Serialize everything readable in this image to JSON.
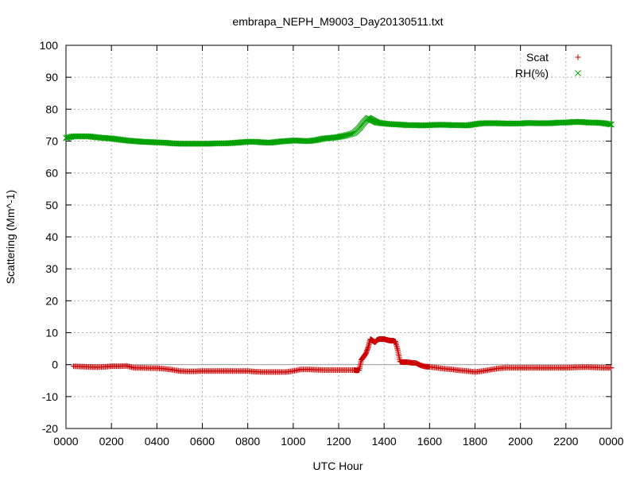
{
  "chart_data": {
    "type": "scatter",
    "title": "embrapa_NEPH_M9003_Day20130511.txt",
    "xlabel": "UTC Hour",
    "ylabel": "Scattering (Mm^-1)",
    "xlim": [
      0,
      24
    ],
    "ylim": [
      -20,
      100
    ],
    "x_tick_values": [
      0,
      2,
      4,
      6,
      8,
      10,
      12,
      14,
      16,
      18,
      20,
      22,
      24
    ],
    "x_tick_labels": [
      "0000",
      "0200",
      "0400",
      "0600",
      "0800",
      "1000",
      "1200",
      "1400",
      "1600",
      "1800",
      "2000",
      "2200",
      "0000"
    ],
    "y_ticks": [
      -20,
      -10,
      0,
      10,
      20,
      30,
      40,
      50,
      60,
      70,
      80,
      90,
      100
    ],
    "grid": true,
    "legend_position": "top-right",
    "zero_line": true,
    "series": [
      {
        "name": "Scat",
        "marker": "+",
        "color": "#cc0000",
        "x": [
          0.33,
          0.67,
          1,
          1.33,
          1.67,
          2,
          2.33,
          2.67,
          3,
          3.33,
          3.67,
          4,
          4.33,
          4.67,
          5,
          5.33,
          5.67,
          6,
          6.33,
          6.67,
          7,
          7.33,
          7.67,
          8,
          8.33,
          8.67,
          9,
          9.33,
          9.67,
          10,
          10.33,
          10.67,
          11,
          11.33,
          11.67,
          12,
          12.33,
          12.67,
          12.8,
          12.9,
          13,
          13.1,
          13.2,
          13.3,
          13.4,
          13.5,
          13.6,
          13.7,
          13.8,
          13.9,
          14,
          14.1,
          14.2,
          14.3,
          14.4,
          14.5,
          14.6,
          14.7,
          14.8,
          14.9,
          15,
          15.2,
          15.4,
          15.6,
          15.8,
          16,
          16.33,
          16.67,
          17,
          17.33,
          17.67,
          18,
          18.33,
          18.67,
          19,
          19.33,
          19.67,
          20,
          20.33,
          20.67,
          21,
          21.33,
          21.67,
          22,
          22.33,
          22.67,
          23,
          23.33,
          23.67,
          24
        ],
        "y": [
          -0.5,
          -0.6,
          -0.7,
          -0.8,
          -0.7,
          -0.5,
          -0.5,
          -0.4,
          -1.0,
          -1.0,
          -1.1,
          -1.1,
          -1.3,
          -1.6,
          -2.0,
          -2.1,
          -2.1,
          -2.0,
          -2.0,
          -2.0,
          -2.0,
          -2.0,
          -2.0,
          -2.0,
          -2.2,
          -2.3,
          -2.3,
          -2.3,
          -2.3,
          -2.0,
          -1.5,
          -1.5,
          -1.6,
          -1.7,
          -1.7,
          -1.7,
          -1.7,
          -1.7,
          -1.8,
          -1.7,
          1.5,
          2.5,
          3.5,
          5.5,
          8.0,
          7.5,
          7.0,
          7.8,
          8.0,
          8.0,
          8.0,
          7.8,
          7.6,
          7.5,
          7.5,
          7.2,
          4.5,
          1.0,
          0.8,
          0.8,
          0.8,
          0.6,
          0.5,
          -0.2,
          -0.6,
          -0.7,
          -1.0,
          -1.3,
          -1.5,
          -1.8,
          -2.0,
          -2.3,
          -2.0,
          -1.6,
          -1.2,
          -1.0,
          -1.0,
          -1.0,
          -1.0,
          -1.0,
          -1.0,
          -1.0,
          -1.0,
          -1.0,
          -0.9,
          -0.8,
          -0.8,
          -0.9,
          -1.0,
          -1.0
        ]
      },
      {
        "name": "RH(%)",
        "marker": "x",
        "color": "#00a000",
        "x": [
          0,
          0.33,
          0.67,
          1,
          1.33,
          1.67,
          2,
          2.33,
          2.67,
          3,
          3.33,
          3.67,
          4,
          4.33,
          4.67,
          5,
          5.33,
          5.67,
          6,
          6.33,
          6.67,
          7,
          7.33,
          7.67,
          8,
          8.33,
          8.67,
          9,
          9.33,
          9.67,
          10,
          10.33,
          10.67,
          11,
          11.33,
          11.67,
          12,
          12.33,
          12.67,
          12.9,
          13.1,
          13.3,
          13.5,
          13.7,
          14,
          14.33,
          14.67,
          15,
          15.33,
          15.67,
          16,
          16.33,
          16.67,
          17,
          17.33,
          17.67,
          18,
          18.33,
          18.67,
          19,
          19.33,
          19.67,
          20,
          20.33,
          20.67,
          21,
          21.33,
          21.67,
          22,
          22.33,
          22.67,
          23,
          23.33,
          23.67,
          24
        ],
        "y": [
          71.0,
          71.5,
          71.5,
          71.5,
          71.2,
          71.0,
          70.8,
          70.5,
          70.2,
          70.0,
          69.8,
          69.7,
          69.6,
          69.5,
          69.3,
          69.2,
          69.2,
          69.2,
          69.2,
          69.2,
          69.3,
          69.3,
          69.4,
          69.6,
          69.8,
          69.8,
          69.6,
          69.5,
          69.8,
          70.0,
          70.2,
          70.1,
          70.0,
          70.3,
          70.8,
          71.0,
          71.3,
          71.8,
          72.5,
          74.0,
          75.8,
          77.3,
          76.5,
          75.8,
          75.5,
          75.3,
          75.2,
          75.0,
          75.0,
          74.9,
          75.0,
          75.1,
          75.1,
          75.0,
          75.0,
          74.9,
          75.3,
          75.6,
          75.6,
          75.6,
          75.5,
          75.5,
          75.5,
          75.7,
          75.6,
          75.6,
          75.6,
          75.8,
          75.8,
          76.0,
          76.0,
          75.8,
          75.8,
          75.6,
          75.2
        ]
      }
    ]
  }
}
